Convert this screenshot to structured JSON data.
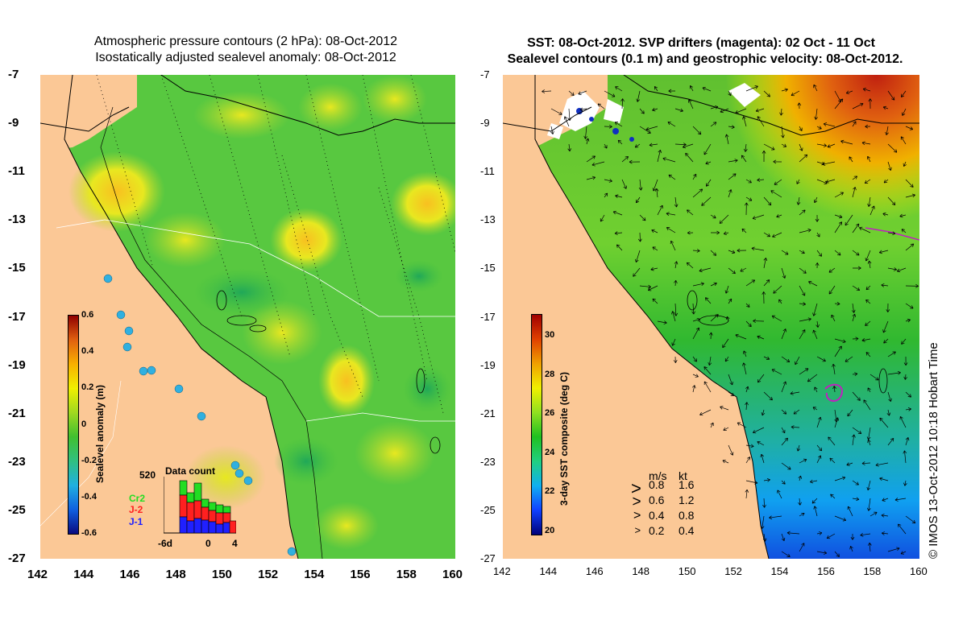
{
  "left_panel": {
    "title_line1": "Atmospheric pressure contours (2 hPa): 08-Oct-2012",
    "title_line2": "Isostatically adjusted sealevel anomaly: 08-Oct-2012",
    "x_ticks": [
      "142",
      "144",
      "146",
      "148",
      "150",
      "152",
      "154",
      "156",
      "158",
      "160"
    ],
    "y_ticks": [
      "-7",
      "-9",
      "-11",
      "-13",
      "-15",
      "-17",
      "-19",
      "-21",
      "-23",
      "-25",
      "-27"
    ],
    "colorbar": {
      "title": "Sealevel anomaly (m)",
      "labels": [
        "0.6",
        "0.4",
        "0.2",
        "0",
        "-0.2",
        "-0.4",
        "-0.6"
      ],
      "range": [
        -0.6,
        0.6
      ]
    },
    "data_count": {
      "title": "Data count",
      "max_label": "520",
      "satellites": [
        {
          "name": "Cr2",
          "color": "#22dd22"
        },
        {
          "name": "J-2",
          "color": "#ff2020"
        },
        {
          "name": "J-1",
          "color": "#2020ff"
        }
      ],
      "x_labels": [
        "-6d",
        "0",
        "4"
      ]
    }
  },
  "right_panel": {
    "title_line1": "SST: 08-Oct-2012. SVP drifters (magenta): 02 Oct - 11 Oct",
    "title_line2": "Sealevel contours (0.1 m) and geostrophic velocity: 08-Oct-2012.",
    "x_ticks": [
      "142",
      "144",
      "146",
      "148",
      "150",
      "152",
      "154",
      "156",
      "158",
      "160"
    ],
    "y_ticks": [
      "-7",
      "-9",
      "-11",
      "-13",
      "-15",
      "-17",
      "-19",
      "-21",
      "-23",
      "-25",
      "-27"
    ],
    "colorbar": {
      "title": "3-day SST composite (deg C)",
      "labels": [
        "30",
        "28",
        "26",
        "24",
        "22",
        "20"
      ],
      "range": [
        20,
        31
      ]
    },
    "velocity_legend": {
      "header_ms": "m/s",
      "header_kt": "kt",
      "rows": [
        {
          "ms": "0.8",
          "kt": "1.6"
        },
        {
          "ms": "0.6",
          "kt": "1.2"
        },
        {
          "ms": "0.4",
          "kt": "0.8"
        },
        {
          "ms": "0.2",
          "kt": "0.4"
        }
      ]
    }
  },
  "copyright": "© IMOS 13-Oct-2012 10:18 Hobart Time",
  "colors": {
    "land": "#fbc896",
    "sla_scale": [
      "#0a0a80",
      "#1060e0",
      "#20b0e0",
      "#30c080",
      "#40c030",
      "#a0d820",
      "#f0f000",
      "#f8b000",
      "#e06010",
      "#900000"
    ],
    "sst_scale": [
      "#00007a",
      "#1040ff",
      "#10b0f0",
      "#20d080",
      "#20c020",
      "#90e020",
      "#f0f000",
      "#f0a000",
      "#e04000",
      "#a00000"
    ]
  }
}
